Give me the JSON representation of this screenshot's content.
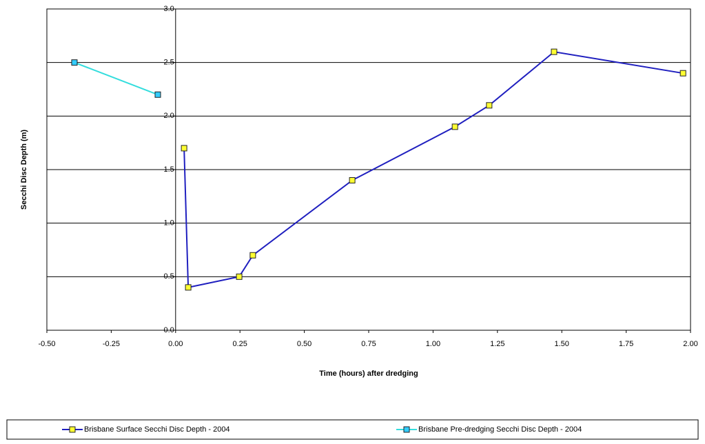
{
  "chart_data": {
    "type": "line",
    "x_label": "Time (hours) after dredging",
    "y_label": "Secchi Disc Depth (m)",
    "series": [
      {
        "name": "Brisbane Surface Secchi Disc Depth  - 2004",
        "color": "#1f1fbf",
        "marker_color": "#ffff33",
        "x": [
          0.033,
          0.049,
          0.247,
          0.3,
          0.686,
          1.085,
          1.218,
          1.47,
          1.971
        ],
        "values": [
          1.7,
          0.4,
          0.5,
          0.7,
          1.4,
          1.9,
          2.1,
          2.6,
          2.4
        ]
      },
      {
        "name": "Brisbane Pre-dredging Secchi Disc Depth - 2004",
        "color": "#33dddd",
        "marker_color": "#33ccff",
        "x": [
          -0.393,
          -0.069
        ],
        "values": [
          2.5,
          2.2
        ]
      }
    ],
    "xlim": [
      -0.5,
      2.0
    ],
    "xticks": [
      {
        "value": -0.5,
        "label": "-0.50"
      },
      {
        "value": -0.25,
        "label": "-0.25"
      },
      {
        "value": 0,
        "label": "0.00"
      },
      {
        "value": 0.25,
        "label": "0.25"
      },
      {
        "value": 0.5,
        "label": "0.50"
      },
      {
        "value": 0.75,
        "label": "0.75"
      },
      {
        "value": 1,
        "label": "1.00"
      },
      {
        "value": 1.25,
        "label": "1.25"
      },
      {
        "value": 1.5,
        "label": "1.50"
      },
      {
        "value": 1.75,
        "label": "1.75"
      },
      {
        "value": 2,
        "label": "2.00"
      }
    ],
    "ylim": [
      0,
      3
    ],
    "yticks": [
      {
        "value": 0,
        "label": "0.0"
      },
      0.5,
      {
        "value": 1,
        "label": "1.0"
      },
      1.5,
      {
        "value": 2,
        "label": "2.0"
      },
      2.5,
      {
        "value": 3,
        "label": "3.0"
      }
    ],
    "grid": true,
    "legend": "bottom"
  }
}
